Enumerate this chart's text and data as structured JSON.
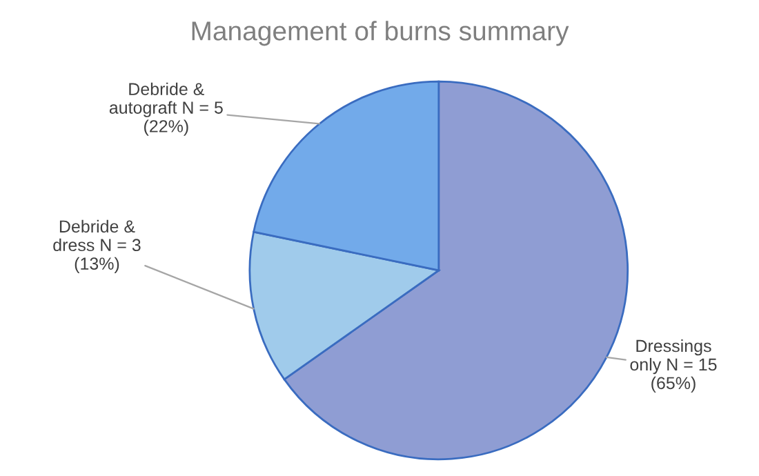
{
  "chart_data": {
    "type": "pie",
    "title": "Management of burns summary",
    "categories": [
      "Dressings\nonly N = 15\n(65%)",
      "Debride &\ndress N = 3\n(13%)",
      "Debride &\nautograft N = 5\n(22%)"
    ],
    "values": [
      15,
      3,
      5
    ],
    "colors": [
      "#8f9dd3",
      "#a0cbeb",
      "#72aaea"
    ]
  }
}
